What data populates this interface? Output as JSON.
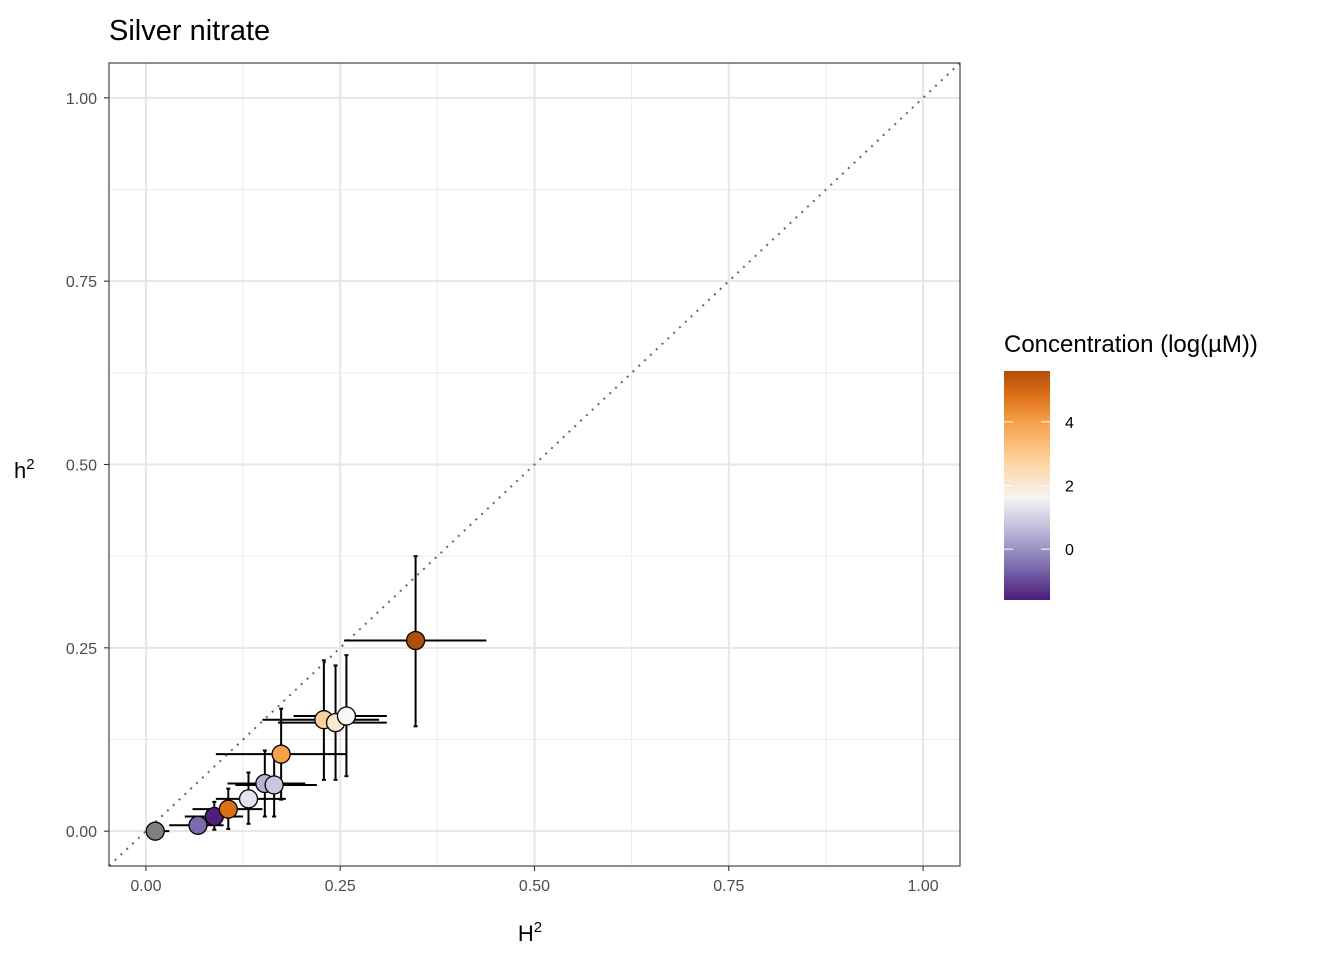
{
  "chart_data": {
    "type": "scatter",
    "title": "Silver nitrate",
    "xlabel": {
      "base": "H",
      "sup": "2"
    },
    "ylabel": {
      "base": "h",
      "sup": "2"
    },
    "xlim": [
      -0.0475,
      1.0475
    ],
    "ylim": [
      -0.0475,
      1.0475
    ],
    "x_ticks": [
      0.0,
      0.25,
      0.5,
      0.75,
      1.0
    ],
    "x_tick_labels": [
      "0.00",
      "0.25",
      "0.50",
      "0.75",
      "1.00"
    ],
    "y_ticks": [
      0.0,
      0.25,
      0.5,
      0.75,
      1.0
    ],
    "y_tick_labels": [
      "0.00",
      "0.25",
      "0.50",
      "0.75",
      "1.00"
    ],
    "grid": true,
    "reference_line": {
      "slope": 1,
      "intercept": 0,
      "style": "dotted",
      "color": "#666666"
    },
    "legend": {
      "title": "Concentration (log(µM))",
      "position": "right",
      "type": "colorbar",
      "range": [
        -1.6,
        5.6
      ],
      "ticks": [
        0,
        2,
        4
      ],
      "tick_labels": [
        "0",
        "2",
        "4"
      ],
      "stops": [
        {
          "value": -1.6,
          "color": "#4b1c7a"
        },
        {
          "value": -0.6,
          "color": "#7a68ac"
        },
        {
          "value": 0.5,
          "color": "#b6b3d5"
        },
        {
          "value": 1.6,
          "color": "#f5f5f5"
        },
        {
          "value": 2.8,
          "color": "#fdd29a"
        },
        {
          "value": 4.0,
          "color": "#f5a04a"
        },
        {
          "value": 4.8,
          "color": "#de7118"
        },
        {
          "value": 5.6,
          "color": "#b24e0a"
        }
      ]
    },
    "points": [
      {
        "x": 0.012,
        "y": 0.0,
        "xmin": 0.0,
        "xmax": 0.03,
        "ymin": 0.0,
        "ymax": 0.0,
        "conc": null,
        "color": "#7f7f7f"
      },
      {
        "x": 0.067,
        "y": 0.008,
        "xmin": 0.03,
        "xmax": 0.1,
        "ymin": 0.0,
        "ymax": 0.02,
        "conc": -0.5,
        "color": "#7c6aaf"
      },
      {
        "x": 0.088,
        "y": 0.02,
        "xmin": 0.05,
        "xmax": 0.125,
        "ymin": 0.002,
        "ymax": 0.04,
        "conc": -1.4,
        "color": "#4d1e7c"
      },
      {
        "x": 0.106,
        "y": 0.03,
        "xmin": 0.06,
        "xmax": 0.15,
        "ymin": 0.003,
        "ymax": 0.058,
        "conc": 4.8,
        "color": "#dc6e16"
      },
      {
        "x": 0.132,
        "y": 0.044,
        "xmin": 0.09,
        "xmax": 0.18,
        "ymin": 0.01,
        "ymax": 0.08,
        "conc": 1.4,
        "color": "#e4e3ef"
      },
      {
        "x": 0.153,
        "y": 0.065,
        "xmin": 0.105,
        "xmax": 0.205,
        "ymin": 0.02,
        "ymax": 0.11,
        "conc": 0.5,
        "color": "#b6b3d5"
      },
      {
        "x": 0.165,
        "y": 0.063,
        "xmin": 0.115,
        "xmax": 0.22,
        "ymin": 0.02,
        "ymax": 0.108,
        "conc": 0.9,
        "color": "#c9c6e0"
      },
      {
        "x": 0.174,
        "y": 0.105,
        "xmin": 0.09,
        "xmax": 0.257,
        "ymin": 0.043,
        "ymax": 0.167,
        "conc": 4.0,
        "color": "#f5a04a"
      },
      {
        "x": 0.229,
        "y": 0.152,
        "xmin": 0.15,
        "xmax": 0.3,
        "ymin": 0.07,
        "ymax": 0.233,
        "conc": 3.0,
        "color": "#fdd29a"
      },
      {
        "x": 0.244,
        "y": 0.148,
        "xmin": 0.17,
        "xmax": 0.31,
        "ymin": 0.07,
        "ymax": 0.226,
        "conc": 2.4,
        "color": "#fbe7cc"
      },
      {
        "x": 0.258,
        "y": 0.157,
        "xmin": 0.19,
        "xmax": 0.31,
        "ymin": 0.075,
        "ymax": 0.24,
        "conc": 2.0,
        "color": "#f7f7f7"
      },
      {
        "x": 0.347,
        "y": 0.26,
        "xmin": 0.255,
        "xmax": 0.438,
        "ymin": 0.143,
        "ymax": 0.375,
        "conc": 5.6,
        "color": "#b24e0a"
      }
    ]
  }
}
